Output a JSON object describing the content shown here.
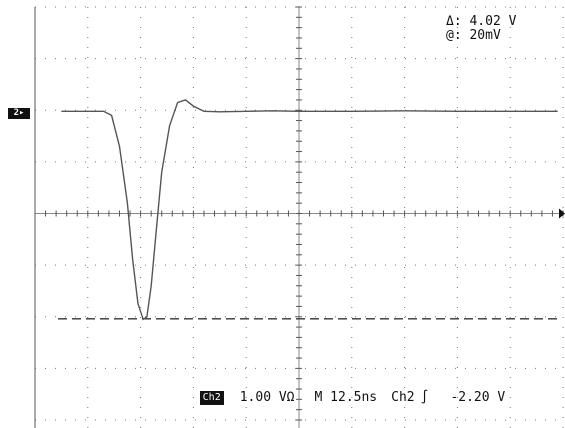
{
  "cursor_readout": {
    "delta_label": "Δ: 4.02 V",
    "at_label": "@: 20mV"
  },
  "channel_marker": {
    "label": "2▸"
  },
  "status_bar": {
    "channel": "Ch2",
    "volts_per_div": "1.00 VΩ",
    "timebase": "M 12.5ns",
    "trigger_source": "Ch2",
    "trigger_slope_icon": "rising-edge-icon",
    "trigger_level": "-2.20 V"
  },
  "chart_data": {
    "type": "line",
    "title": "",
    "xlabel": "",
    "ylabel": "",
    "grid": true,
    "x_divisions": 10,
    "y_divisions": 8,
    "x_unit": "div",
    "y_unit": "V",
    "ylim": [
      -4,
      4
    ],
    "xlim": [
      0,
      10
    ],
    "baseline_v": 1.98,
    "cursor_level_v": -2.04,
    "series": [
      {
        "x": [
          0.5,
          1.3,
          1.45,
          1.6,
          1.75,
          1.85,
          1.95,
          2.05,
          2.12,
          2.2,
          2.3,
          2.4,
          2.55,
          2.7,
          2.85,
          3.0,
          3.2,
          3.5,
          4.0,
          4.5,
          5.0,
          6.0,
          7.0,
          8.0,
          9.0,
          9.9
        ],
        "y": [
          1.98,
          1.98,
          1.9,
          1.3,
          0.2,
          -0.9,
          -1.75,
          -2.05,
          -2.0,
          -1.4,
          -0.3,
          0.8,
          1.7,
          2.15,
          2.2,
          2.08,
          1.98,
          1.97,
          1.98,
          1.99,
          1.98,
          1.98,
          1.99,
          1.98,
          1.98,
          1.98
        ]
      }
    ]
  }
}
